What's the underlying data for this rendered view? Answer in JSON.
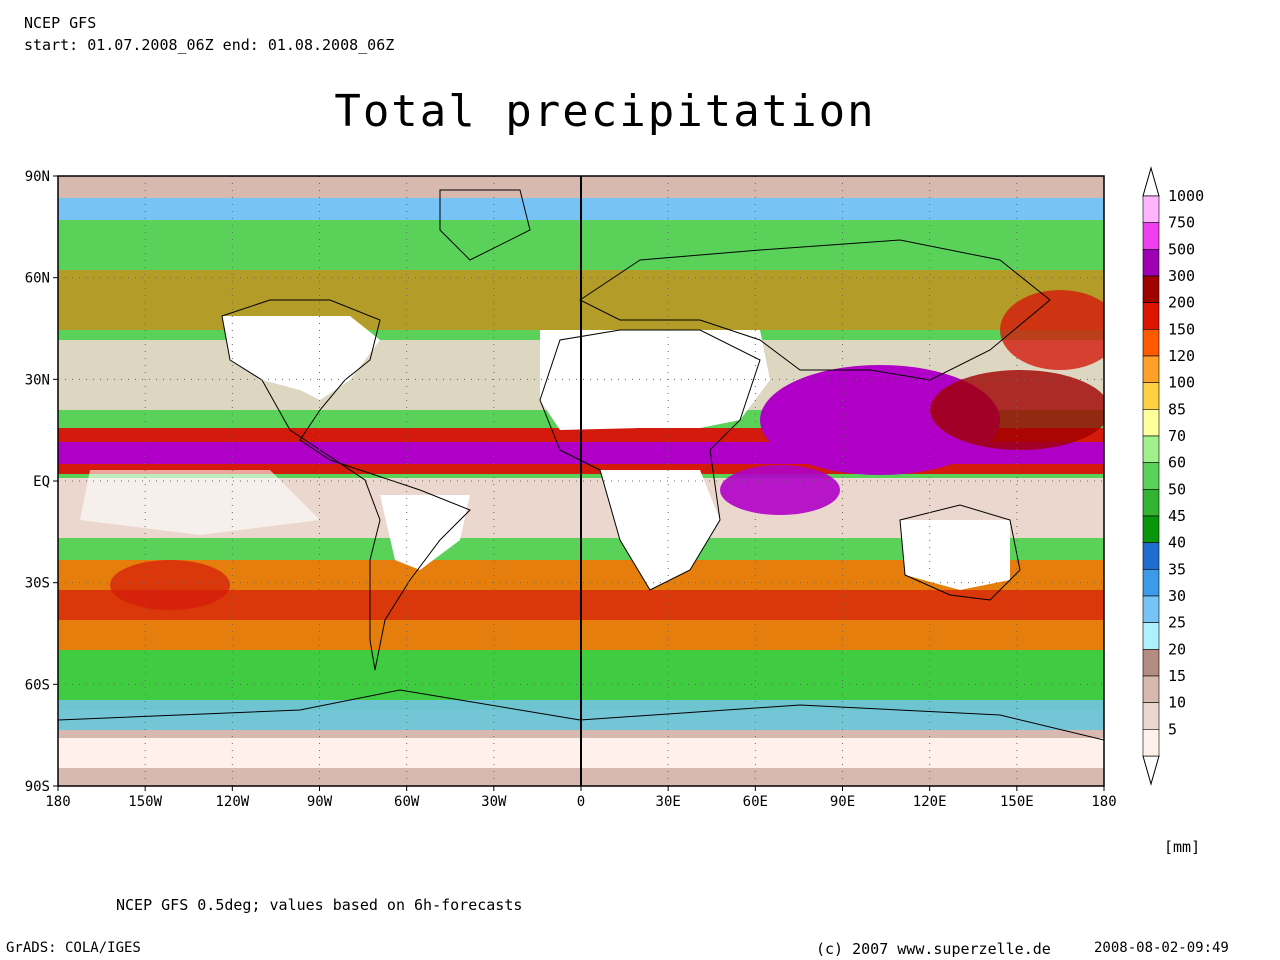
{
  "header": {
    "model": "NCEP GFS",
    "period": "start: 01.07.2008_06Z end: 01.08.2008_06Z"
  },
  "title": "Total precipitation",
  "map": {
    "lat_labels": [
      "90N",
      "60N",
      "30N",
      "EQ",
      "30S",
      "60S",
      "90S"
    ],
    "lon_labels": [
      "180",
      "150W",
      "120W",
      "90W",
      "60W",
      "30W",
      "0",
      "30E",
      "60E",
      "90E",
      "120E",
      "150E",
      "180"
    ],
    "lat_range": [
      -90,
      90
    ],
    "lon_range": [
      -180,
      180
    ],
    "grid_dotted": true,
    "ocean_colors": {
      "band_itcz": "#b000c8",
      "band_heavy": "#d41a0c",
      "band_moderate": "#ff7000",
      "band_light": "#40cc40",
      "band_polar": "#c8a498",
      "land_dry": "#ffffff"
    }
  },
  "legend": {
    "unit": "[mm]",
    "levels": [
      {
        "label": "1000",
        "color": "#ffb4ff"
      },
      {
        "label": "750",
        "color": "#ee40ee"
      },
      {
        "label": "500",
        "color": "#a000b4"
      },
      {
        "label": "300",
        "color": "#a00000"
      },
      {
        "label": "200",
        "color": "#dc1400"
      },
      {
        "label": "150",
        "color": "#ff5a00"
      },
      {
        "label": "120",
        "color": "#ffa028"
      },
      {
        "label": "100",
        "color": "#ffd040"
      },
      {
        "label": "85",
        "color": "#ffff9c"
      },
      {
        "label": "70",
        "color": "#a0f08c"
      },
      {
        "label": "60",
        "color": "#5ad25a"
      },
      {
        "label": "50",
        "color": "#32b432"
      },
      {
        "label": "45",
        "color": "#0a960a"
      },
      {
        "label": "40",
        "color": "#1e6ed2"
      },
      {
        "label": "35",
        "color": "#3c9be6"
      },
      {
        "label": "30",
        "color": "#78c3f5"
      },
      {
        "label": "25",
        "color": "#aff0ff"
      },
      {
        "label": "20",
        "color": "#b48c82"
      },
      {
        "label": "15",
        "color": "#d7b9b0"
      },
      {
        "label": "10",
        "color": "#ebd7cd"
      },
      {
        "label": "5",
        "color": "#fff0eb"
      }
    ]
  },
  "footer": {
    "note": "NCEP GFS 0.5deg; values based on 6h-forecasts",
    "grads": "GrADS: COLA/IGES",
    "copyright": "(c) 2007 www.superzelle.de",
    "timestamp": "2008-08-02-09:49"
  }
}
